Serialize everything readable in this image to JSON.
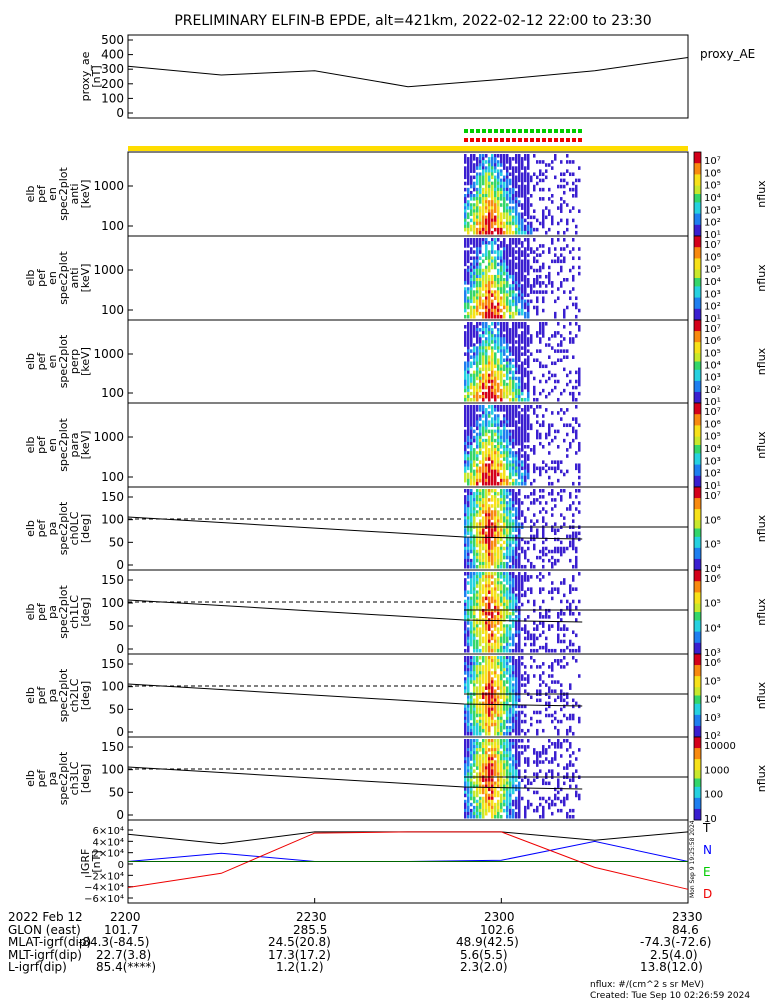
{
  "title": "PRELIMINARY ELFIN-B EPDE, alt=421km, 2022-02-12 22:00 to 23:30",
  "colors": {
    "line": "#000000",
    "N": "#0000ff",
    "E": "#00cc00",
    "D": "#ee0000",
    "state_bar": "#ffdd00",
    "marker_green": "#00cc00",
    "marker_red": "#ee0000"
  },
  "panels": [
    {
      "id": "ae",
      "ylabel": [
        "proxy_ae",
        "[nT]"
      ],
      "yticks": [
        "500",
        "400",
        "300",
        "200",
        "100",
        "0"
      ],
      "right_label": "proxy_AE"
    },
    {
      "id": "en_anti",
      "ylabel": [
        "elb",
        "pef",
        "en",
        "spec2plot",
        "anti",
        "[keV]"
      ],
      "yticks": [
        "1000",
        "100"
      ],
      "cbar_ticks": [
        "10⁷",
        "10⁶",
        "10⁵",
        "10⁴",
        "10³",
        "10²",
        "10¹"
      ],
      "cbar_label": "nflux"
    },
    {
      "id": "en_anti2",
      "ylabel": [
        "elb",
        "pef",
        "en",
        "spec2plot",
        "anti",
        "[keV]"
      ],
      "yticks": [
        "1000",
        "100"
      ],
      "cbar_ticks": [
        "10⁷",
        "10⁶",
        "10⁵",
        "10⁴",
        "10³",
        "10²",
        "10¹"
      ],
      "cbar_label": "nflux"
    },
    {
      "id": "en_perp",
      "ylabel": [
        "elb",
        "pef",
        "en",
        "spec2plot",
        "perp",
        "[keV]"
      ],
      "yticks": [
        "1000",
        "100"
      ],
      "cbar_ticks": [
        "10⁷",
        "10⁶",
        "10⁵",
        "10⁴",
        "10³",
        "10²",
        "10¹"
      ],
      "cbar_label": "nflux"
    },
    {
      "id": "en_para",
      "ylabel": [
        "elb",
        "pef",
        "en",
        "spec2plot",
        "para",
        "[keV]"
      ],
      "yticks": [
        "1000",
        "100"
      ],
      "cbar_ticks": [
        "10⁷",
        "10⁶",
        "10⁵",
        "10⁴",
        "10³",
        "10²",
        "10¹"
      ],
      "cbar_label": "nflux"
    },
    {
      "id": "ch0",
      "ylabel": [
        "elb",
        "pef",
        "pa",
        "spec2plot",
        "ch0LC",
        "[deg]"
      ],
      "yticks": [
        "150",
        "100",
        "50",
        "0"
      ],
      "cbar_ticks": [
        "10⁷",
        "10⁶",
        "10⁵",
        "10⁴"
      ],
      "cbar_label": "nflux"
    },
    {
      "id": "ch1",
      "ylabel": [
        "elb",
        "pef",
        "pa",
        "spec2plot",
        "ch1LC",
        "[deg]"
      ],
      "yticks": [
        "150",
        "100",
        "50",
        "0"
      ],
      "cbar_ticks": [
        "10⁶",
        "10⁵",
        "10⁴",
        "10³"
      ],
      "cbar_label": "nflux"
    },
    {
      "id": "ch2",
      "ylabel": [
        "elb",
        "pef",
        "pa",
        "spec2plot",
        "ch2LC",
        "[deg]"
      ],
      "yticks": [
        "150",
        "100",
        "50",
        "0"
      ],
      "cbar_ticks": [
        "10⁶",
        "10⁵",
        "10⁴",
        "10³",
        "10²"
      ],
      "cbar_label": "nflux"
    },
    {
      "id": "ch3",
      "ylabel": [
        "elb",
        "pef",
        "pa",
        "spec2plot",
        "ch3LC",
        "[deg]"
      ],
      "yticks": [
        "150",
        "100",
        "50",
        "0"
      ],
      "cbar_ticks": [
        "10000",
        "1000",
        "100",
        "10"
      ],
      "cbar_label": "nflux"
    },
    {
      "id": "igrf",
      "ylabel": [
        "IGRF",
        "[nT]"
      ],
      "yticks": [
        "6×10⁴",
        "4×10⁴",
        "2×10⁴",
        "0",
        "−2×10⁴",
        "−4×10⁴",
        "−6×10⁴"
      ],
      "legend": [
        "T",
        "N",
        "E",
        "D"
      ]
    }
  ],
  "x_axis": {
    "ticks": [
      "2200",
      "2230",
      "2300",
      "2330"
    ]
  },
  "footer": {
    "rows": [
      [
        "2022 Feb 12",
        "2200",
        "2230",
        "2300",
        "2330"
      ],
      [
        "GLON (east)",
        "101.7",
        "285.5",
        "102.6",
        "84.6"
      ],
      [
        "MLAT-igrf(dip)",
        "-84.3(-84.5)",
        "24.5(20.8)",
        "48.9(42.5)",
        "-74.3(-72.6)"
      ],
      [
        "MLT-igrf(dip)",
        "22.7(3.8)",
        "17.3(17.2)",
        "5.6(5.5)",
        "2.5(4.0)"
      ],
      [
        "L-igrf(dip)",
        "85.4(****)",
        "1.2(1.2)",
        "2.3(2.0)",
        "13.8(12.0)"
      ]
    ],
    "units_note": "nflux: #/(cm^2 s sr MeV)",
    "created": "Created: Tue Sep 10 02:26:59 2024",
    "side_stamp": "Mon Sep  9 19:25:58 2024"
  },
  "chart_data": {
    "type": "line",
    "x_unit": "UT (hhmm)",
    "x": [
      "2200",
      "2215",
      "2230",
      "2245",
      "2300",
      "2315",
      "2330"
    ],
    "series": [
      {
        "name": "proxy_AE",
        "values": [
          320,
          260,
          290,
          180,
          230,
          290,
          380
        ]
      },
      {
        "name": "T",
        "values": [
          46000,
          30000,
          50000,
          50000,
          50000,
          36000,
          50000
        ]
      },
      {
        "name": "N",
        "values": [
          0,
          14000,
          0,
          0,
          2000,
          34000,
          0
        ]
      },
      {
        "name": "E",
        "values": [
          0,
          0,
          0,
          0,
          0,
          0,
          0
        ]
      },
      {
        "name": "D",
        "values": [
          -44000,
          -20000,
          48000,
          50000,
          50000,
          -10000,
          -47000
        ]
      }
    ],
    "spectrogram": {
      "active_interval": [
        "2254",
        "2313"
      ],
      "peak_time": "2258"
    }
  }
}
